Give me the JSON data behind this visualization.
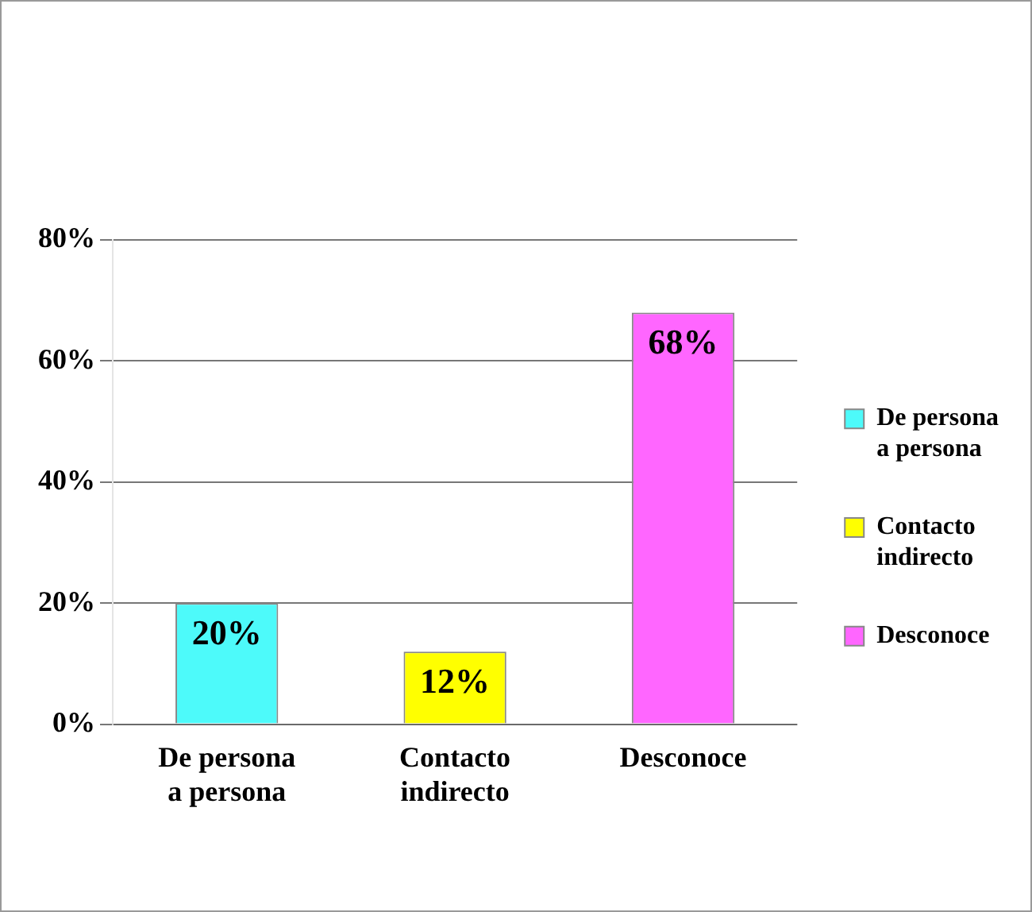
{
  "chart_data": {
    "type": "bar",
    "categories": [
      "De persona a persona",
      "Contacto indirecto",
      "Desconoce"
    ],
    "series": [
      {
        "name": "De persona a persona",
        "color": "#4dfafa",
        "values": [
          20,
          null,
          null
        ],
        "value_labels": [
          "20%",
          null,
          null
        ]
      },
      {
        "name": "Contacto indirecto",
        "color": "#ffff00",
        "values": [
          null,
          12,
          null
        ],
        "value_labels": [
          null,
          "12%",
          null
        ]
      },
      {
        "name": "Desconoce",
        "color": "#ff66ff",
        "values": [
          null,
          null,
          68
        ],
        "value_labels": [
          null,
          null,
          "68%"
        ]
      }
    ],
    "ylim": [
      0,
      80
    ],
    "yticks": [
      {
        "value": 0,
        "label": "0%"
      },
      {
        "value": 20,
        "label": "20%"
      },
      {
        "value": 40,
        "label": "40%"
      },
      {
        "value": 60,
        "label": "60%"
      },
      {
        "value": 80,
        "label": "80%"
      }
    ],
    "grid": "y",
    "legend": "right"
  }
}
